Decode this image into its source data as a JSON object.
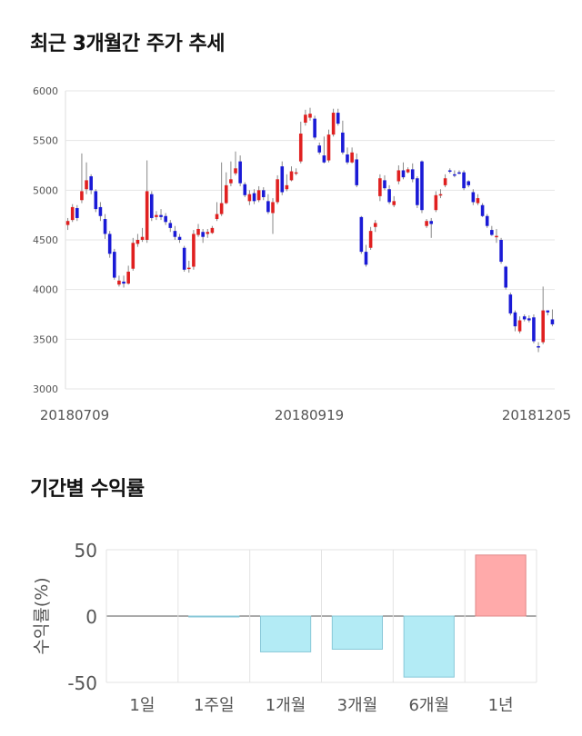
{
  "chart_data": [
    {
      "type": "candlestick",
      "title": "최근 3개월간 주가 추세",
      "ylim": [
        3000,
        6000
      ],
      "yticks": [
        "6000",
        "5500",
        "5000",
        "4500",
        "4000",
        "3500",
        "3000"
      ],
      "xtick_labels": [
        "20180709",
        "20180919",
        "20181205"
      ],
      "grid": true,
      "colors": {
        "up": "#e02020",
        "down": "#1a1ad6",
        "wick": "#888888"
      },
      "candles": [
        [
          4650,
          4690,
          4600,
          4720
        ],
        [
          4700,
          4830,
          4680,
          4860
        ],
        [
          4820,
          4720,
          4690,
          4850
        ],
        [
          4900,
          4990,
          4870,
          5370
        ],
        [
          5010,
          5100,
          4960,
          5280
        ],
        [
          5140,
          5000,
          4960,
          5160
        ],
        [
          4990,
          4810,
          4780,
          5010
        ],
        [
          4830,
          4740,
          4690,
          4880
        ],
        [
          4710,
          4560,
          4510,
          4760
        ],
        [
          4560,
          4360,
          4320,
          4590
        ],
        [
          4380,
          4120,
          4100,
          4410
        ],
        [
          4050,
          4090,
          4030,
          4140
        ],
        [
          4080,
          4060,
          4020,
          4140
        ],
        [
          4060,
          4180,
          4050,
          4240
        ],
        [
          4210,
          4470,
          4190,
          4520
        ],
        [
          4460,
          4500,
          4430,
          4560
        ],
        [
          4500,
          4530,
          4480,
          4620
        ],
        [
          4500,
          4990,
          4470,
          5300
        ],
        [
          4960,
          4720,
          4690,
          4990
        ],
        [
          4730,
          4750,
          4700,
          4790
        ],
        [
          4750,
          4730,
          4700,
          4810
        ],
        [
          4740,
          4680,
          4650,
          4770
        ],
        [
          4670,
          4620,
          4580,
          4700
        ],
        [
          4590,
          4530,
          4500,
          4640
        ],
        [
          4530,
          4500,
          4470,
          4560
        ],
        [
          4420,
          4200,
          4180,
          4440
        ],
        [
          4210,
          4220,
          4170,
          4290
        ],
        [
          4230,
          4560,
          4200,
          4600
        ],
        [
          4550,
          4610,
          4530,
          4660
        ],
        [
          4580,
          4530,
          4470,
          4610
        ],
        [
          4560,
          4580,
          4520,
          4610
        ],
        [
          4570,
          4620,
          4560,
          4640
        ],
        [
          4710,
          4760,
          4690,
          4880
        ],
        [
          4760,
          4870,
          4740,
          5280
        ],
        [
          4870,
          5050,
          4860,
          5180
        ],
        [
          5070,
          5110,
          5040,
          5290
        ],
        [
          5170,
          5220,
          5150,
          5390
        ],
        [
          5290,
          5070,
          5040,
          5350
        ],
        [
          5060,
          4950,
          4930,
          5080
        ],
        [
          4890,
          4960,
          4850,
          5000
        ],
        [
          4970,
          4890,
          4860,
          5010
        ],
        [
          4900,
          5000,
          4880,
          5040
        ],
        [
          5000,
          4930,
          4900,
          5030
        ],
        [
          4890,
          4780,
          4760,
          4960
        ],
        [
          4770,
          4880,
          4560,
          4920
        ],
        [
          4880,
          5110,
          4860,
          5150
        ],
        [
          5240,
          4980,
          4950,
          5290
        ],
        [
          5010,
          5050,
          4990,
          5160
        ],
        [
          5100,
          5190,
          5090,
          5240
        ],
        [
          5180,
          5180,
          5150,
          5220
        ],
        [
          5290,
          5570,
          5270,
          5690
        ],
        [
          5680,
          5760,
          5650,
          5810
        ],
        [
          5730,
          5770,
          5700,
          5830
        ],
        [
          5720,
          5530,
          5510,
          5750
        ],
        [
          5450,
          5380,
          5360,
          5480
        ],
        [
          5350,
          5280,
          5270,
          5540
        ],
        [
          5300,
          5560,
          5280,
          5610
        ],
        [
          5560,
          5780,
          5540,
          5820
        ],
        [
          5780,
          5670,
          5650,
          5820
        ],
        [
          5580,
          5380,
          5360,
          5700
        ],
        [
          5360,
          5280,
          5260,
          5430
        ],
        [
          5280,
          5380,
          5270,
          5430
        ],
        [
          5310,
          5050,
          5030,
          5370
        ],
        [
          4730,
          4380,
          4360,
          4740
        ],
        [
          4380,
          4250,
          4230,
          4450
        ],
        [
          4420,
          4590,
          4400,
          4630
        ],
        [
          4630,
          4670,
          4580,
          4700
        ],
        [
          4940,
          5120,
          4890,
          5160
        ],
        [
          5100,
          5020,
          5000,
          5150
        ],
        [
          5010,
          4880,
          4860,
          5050
        ],
        [
          4850,
          4890,
          4830,
          4940
        ],
        [
          5090,
          5200,
          5060,
          5250
        ],
        [
          5200,
          5130,
          5110,
          5280
        ],
        [
          5180,
          5210,
          5170,
          5230
        ],
        [
          5210,
          5110,
          5080,
          5270
        ],
        [
          5120,
          4850,
          4820,
          5140
        ],
        [
          5290,
          4800,
          4770,
          5300
        ],
        [
          4640,
          4690,
          4620,
          4710
        ],
        [
          4690,
          4660,
          4520,
          4720
        ],
        [
          4800,
          4950,
          4780,
          4990
        ],
        [
          4950,
          4960,
          4920,
          5010
        ],
        [
          5050,
          5120,
          5030,
          5160
        ],
        [
          5200,
          5190,
          5170,
          5220
        ],
        [
          5160,
          5150,
          5130,
          5200
        ],
        [
          5180,
          5170,
          5160,
          5200
        ],
        [
          5180,
          5020,
          5000,
          5200
        ],
        [
          5090,
          5050,
          5030,
          5100
        ],
        [
          4980,
          4880,
          4850,
          5010
        ],
        [
          4870,
          4920,
          4850,
          4960
        ],
        [
          4850,
          4740,
          4730,
          4870
        ],
        [
          4740,
          4640,
          4620,
          4760
        ],
        [
          4600,
          4550,
          4540,
          4640
        ],
        [
          4530,
          4540,
          4470,
          4610
        ],
        [
          4500,
          4280,
          4260,
          4520
        ],
        [
          4230,
          4020,
          4000,
          4240
        ],
        [
          3950,
          3760,
          3740,
          3970
        ],
        [
          3770,
          3630,
          3580,
          3790
        ],
        [
          3580,
          3690,
          3560,
          3730
        ],
        [
          3730,
          3700,
          3680,
          3750
        ],
        [
          3710,
          3690,
          3670,
          3740
        ],
        [
          3720,
          3480,
          3460,
          3750
        ],
        [
          3430,
          3420,
          3370,
          3470
        ],
        [
          3470,
          3790,
          3450,
          4030
        ],
        [
          3790,
          3770,
          3740,
          3790
        ],
        [
          3700,
          3650,
          3630,
          3800
        ]
      ]
    },
    {
      "type": "bar",
      "title": "기간별 수익률",
      "ylabel": "수익률(%)",
      "ylim": [
        -50,
        50
      ],
      "yticks": [
        "50",
        "0",
        "-50"
      ],
      "categories": [
        "1일",
        "1주일",
        "1개월",
        "3개월",
        "6개월",
        "1년"
      ],
      "values": [
        0,
        -0.5,
        -27,
        -25,
        -46,
        46
      ],
      "colors": {
        "positive": "#ffaaaa",
        "positive_edge": "#e08888",
        "negative": "#b3ebf5",
        "negative_edge": "#88c8d8",
        "zero": "#555555"
      },
      "grid": true
    }
  ]
}
